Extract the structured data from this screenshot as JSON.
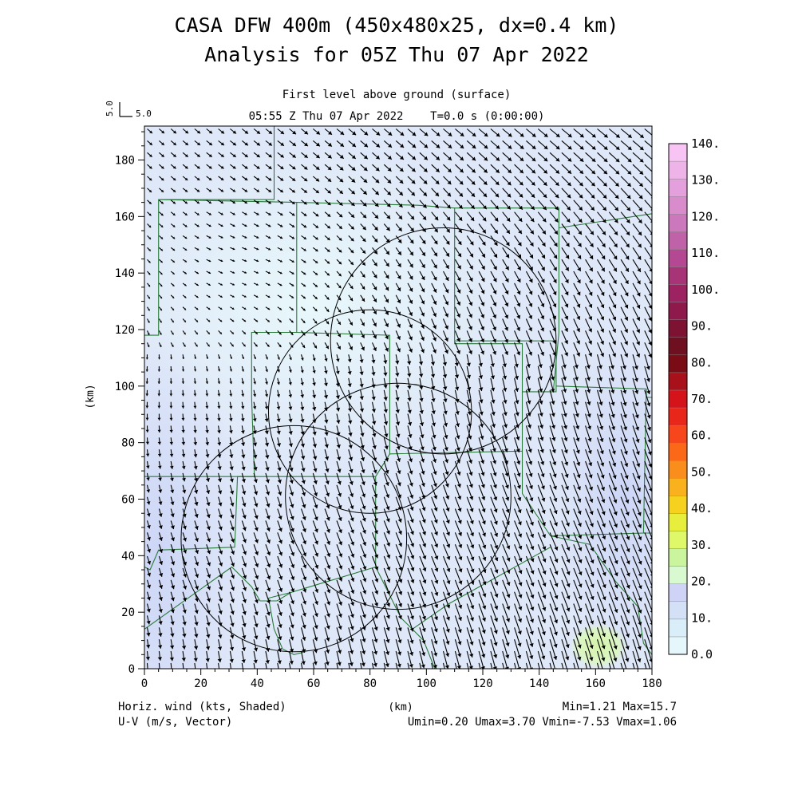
{
  "header": {
    "title": "CASA DFW 400m (450x480x25, dx=0.4 km)",
    "subtitle": "Analysis for 05Z Thu 07 Apr 2022",
    "level": "First level above ground (surface)",
    "time_line": "05:55 Z Thu 07 Apr 2022    T=0.0 s (0:00:00)"
  },
  "reference_vector": {
    "vertical_label": "5.0",
    "horizontal_label": "5.0"
  },
  "footer": {
    "left_line1": "Horiz. wind (kts, Shaded)",
    "left_line2": "U-V (m/s, Vector)",
    "center": "(km)",
    "right_line1": "Min=1.21 Max=15.7",
    "right_line2": "Umin=0.20 Umax=3.70 Vmin=-7.53 Vmax=1.06"
  },
  "chart_data": {
    "type": "heatmap",
    "title": "First level above ground (surface)",
    "xlabel": "(km)",
    "ylabel": "(km)",
    "xlim": [
      0,
      180
    ],
    "ylim": [
      0,
      192
    ],
    "x_ticks": [
      0,
      20,
      40,
      60,
      80,
      100,
      120,
      140,
      160,
      180
    ],
    "y_ticks": [
      0,
      20,
      40,
      60,
      80,
      100,
      120,
      140,
      160,
      180
    ],
    "colorbar": {
      "labels": [
        "0.0",
        "10.",
        "20.",
        "30.",
        "40.",
        "50.",
        "60.",
        "70.",
        "80.",
        "90.",
        "100.",
        "110.",
        "120.",
        "130.",
        "140."
      ],
      "colors": [
        "#e6f7fb",
        "#d9eef8",
        "#d4e0f6",
        "#cfd3f6",
        "#d9fad0",
        "#cbf49f",
        "#dff86a",
        "#e8ee3c",
        "#f6d21e",
        "#f9b21e",
        "#f98e1c",
        "#fa6818",
        "#f8461c",
        "#e8261a",
        "#d4141a",
        "#a8101a",
        "#7a0c16",
        "#6e1020",
        "#7d1233",
        "#8e1a4c",
        "#9c2262",
        "#a83478",
        "#b44892",
        "#c062a8",
        "#cc78bc",
        "#d88ccc",
        "#e4a0dc",
        "#eeb4e8",
        "#f8c4f4"
      ]
    },
    "field": "Horiz. wind (kts, Shaded)",
    "vectors": "U-V (m/s, Vector)",
    "min": 1.21,
    "max": 15.7,
    "umin": 0.2,
    "umax": 3.7,
    "vmin": -7.53,
    "vmax": 1.06,
    "range_rings": [
      {
        "center_x": 106,
        "center_y": 116,
        "radius": 40
      },
      {
        "center_x": 80,
        "center_y": 91,
        "radius": 36
      },
      {
        "center_x": 90,
        "center_y": 61,
        "radius": 40
      },
      {
        "center_x": 53,
        "center_y": 46,
        "radius": 40
      }
    ],
    "shading_regions": [
      {
        "level": "0.0",
        "color": "#e4f6fa",
        "x": 60,
        "y": 130,
        "rx": 70,
        "ry": 55
      },
      {
        "level": "10.",
        "color": "#d2dcf6",
        "x": 5,
        "y": 40,
        "rx": 30,
        "ry": 80
      },
      {
        "level": "10.",
        "color": "#d2dcf6",
        "x": 170,
        "y": 60,
        "rx": 25,
        "ry": 60
      },
      {
        "level": "20.",
        "color": "#dcf7b8",
        "x": 161,
        "y": 8,
        "rx": 10,
        "ry": 8
      }
    ],
    "county_boundaries": [
      [
        [
          46,
          192
        ],
        [
          46,
          166
        ],
        [
          5,
          166
        ],
        [
          5,
          118
        ],
        [
          0,
          118
        ]
      ],
      [
        [
          5,
          166
        ],
        [
          54,
          165
        ],
        [
          54,
          119
        ],
        [
          38,
          119
        ],
        [
          38,
          96
        ],
        [
          39,
          68
        ],
        [
          0,
          68
        ]
      ],
      [
        [
          54,
          165
        ],
        [
          97,
          164
        ],
        [
          110,
          163
        ],
        [
          147,
          163
        ],
        [
          147,
          156
        ],
        [
          180,
          161
        ]
      ],
      [
        [
          110,
          163
        ],
        [
          110,
          115
        ],
        [
          134,
          115
        ],
        [
          134,
          98
        ],
        [
          146,
          98
        ],
        [
          146,
          116
        ],
        [
          110,
          116
        ]
      ],
      [
        [
          147,
          156
        ],
        [
          147,
          119
        ],
        [
          145,
          98
        ]
      ],
      [
        [
          54,
          119
        ],
        [
          87,
          118
        ],
        [
          87,
          76
        ],
        [
          134,
          77
        ],
        [
          134,
          98
        ]
      ],
      [
        [
          146,
          100
        ],
        [
          178,
          99
        ],
        [
          178,
          96
        ],
        [
          180,
          96
        ]
      ],
      [
        [
          178,
          99
        ],
        [
          177,
          48
        ],
        [
          180,
          48
        ]
      ],
      [
        [
          134,
          77
        ],
        [
          134,
          62
        ],
        [
          144,
          47
        ],
        [
          177,
          48
        ]
      ],
      [
        [
          39,
          68
        ],
        [
          33,
          68
        ],
        [
          32,
          43
        ],
        [
          5,
          42
        ],
        [
          2,
          35
        ],
        [
          0,
          36
        ]
      ],
      [
        [
          87,
          76
        ],
        [
          82,
          68
        ],
        [
          33,
          68
        ]
      ],
      [
        [
          82,
          68
        ],
        [
          82,
          36
        ],
        [
          52,
          27
        ],
        [
          47,
          24
        ],
        [
          41,
          24
        ],
        [
          38,
          29
        ],
        [
          31,
          36
        ],
        [
          0,
          14
        ]
      ],
      [
        [
          82,
          36
        ],
        [
          91,
          18
        ],
        [
          95,
          14
        ],
        [
          108,
          23
        ],
        [
          144,
          43
        ]
      ],
      [
        [
          52,
          27
        ],
        [
          44,
          25
        ],
        [
          46,
          14
        ],
        [
          49,
          7
        ],
        [
          53,
          5
        ],
        [
          57,
          6
        ]
      ],
      [
        [
          95,
          14
        ],
        [
          99,
          10
        ],
        [
          103,
          0
        ]
      ],
      [
        [
          144,
          47
        ],
        [
          158,
          44
        ],
        [
          167,
          31
        ],
        [
          175,
          22
        ],
        [
          177,
          9
        ],
        [
          180,
          5
        ]
      ]
    ]
  }
}
